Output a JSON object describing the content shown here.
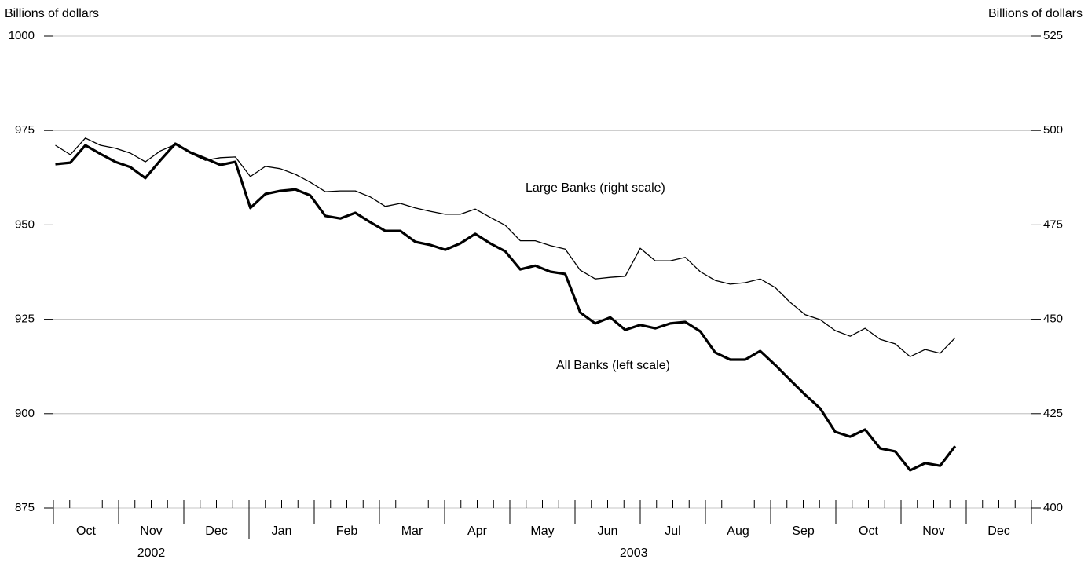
{
  "chart_data": {
    "type": "line",
    "y_label": "Billions of dollars",
    "y2_label": "Billions of dollars",
    "xlim": [
      0,
      15
    ],
    "xticks": [
      {
        "value": 0.5,
        "label": "Oct"
      },
      {
        "value": 1.5,
        "label": "Nov"
      },
      {
        "value": 2.5,
        "label": "Dec"
      },
      {
        "value": 3.5,
        "label": "Jan"
      },
      {
        "value": 4.5,
        "label": "Feb"
      },
      {
        "value": 5.5,
        "label": "Mar"
      },
      {
        "value": 6.5,
        "label": "Apr"
      },
      {
        "value": 7.5,
        "label": "May"
      },
      {
        "value": 8.5,
        "label": "Jun"
      },
      {
        "value": 9.5,
        "label": "Jul"
      },
      {
        "value": 10.5,
        "label": "Aug"
      },
      {
        "value": 11.5,
        "label": "Sep"
      },
      {
        "value": 12.5,
        "label": "Oct"
      },
      {
        "value": 13.5,
        "label": "Nov"
      },
      {
        "value": 14.5,
        "label": "Dec"
      }
    ],
    "year_labels": [
      {
        "value": 1.5,
        "label": "2002"
      },
      {
        "value": 8.9,
        "label": "2003"
      }
    ],
    "year_ticks": [
      3
    ],
    "ylim": [
      875,
      1000
    ],
    "yticks": [
      875,
      900,
      925,
      950,
      975,
      1000
    ],
    "y2lim": [
      400,
      525
    ],
    "y2ticks": [
      400,
      425,
      450,
      475,
      500,
      525
    ],
    "grid": true,
    "x": [
      0.03,
      0.26,
      0.49,
      0.72,
      0.95,
      1.18,
      1.41,
      1.64,
      1.87,
      2.1,
      2.33,
      2.56,
      2.79,
      3.02,
      3.25,
      3.48,
      3.71,
      3.94,
      4.17,
      4.4,
      4.63,
      4.86,
      5.09,
      5.32,
      5.55,
      5.78,
      6.01,
      6.24,
      6.47,
      6.7,
      6.93,
      7.16,
      7.39,
      7.62,
      7.85,
      8.08,
      8.31,
      8.54,
      8.77,
      9.0,
      9.23,
      9.46,
      9.69,
      9.92,
      10.15,
      10.38,
      10.61,
      10.84,
      11.07,
      11.3,
      11.53,
      11.76,
      11.99,
      12.22,
      12.45,
      12.68,
      12.91,
      13.14,
      13.37,
      13.6,
      13.83
    ],
    "series": [
      {
        "name": "All Banks (left scale)",
        "color": "#000000",
        "axis": "y",
        "width": 3.2,
        "values": [
          966.1,
          966.5,
          971.1,
          968.8,
          966.7,
          965.3,
          962.4,
          967.1,
          971.5,
          969.2,
          967.6,
          965.9,
          966.7,
          954.5,
          958.2,
          959.0,
          959.4,
          957.8,
          952.4,
          951.7,
          953.2,
          950.7,
          948.4,
          948.4,
          945.5,
          944.7,
          943.4,
          945.1,
          947.6,
          945.1,
          943.0,
          938.2,
          939.2,
          937.6,
          937.0,
          926.8,
          923.9,
          925.5,
          922.2,
          923.5,
          922.6,
          923.9,
          924.3,
          921.8,
          916.2,
          914.3,
          914.3,
          916.6,
          912.9,
          908.9,
          905.0,
          901.4,
          895.2,
          893.9,
          895.8,
          890.8,
          890.0,
          885.0,
          886.9,
          886.2,
          891.4
        ]
      },
      {
        "name": "Large Banks (right scale)",
        "color": "#000000",
        "axis": "y2",
        "width": 1.3,
        "values": [
          496.1,
          493.6,
          498.0,
          496.1,
          495.3,
          494.0,
          491.7,
          494.6,
          496.3,
          494.0,
          492.1,
          492.8,
          493.0,
          487.8,
          490.5,
          489.9,
          488.4,
          486.3,
          483.8,
          484.0,
          484.0,
          482.4,
          479.9,
          480.7,
          479.5,
          478.6,
          477.8,
          477.8,
          479.2,
          477.0,
          474.9,
          470.8,
          470.8,
          469.5,
          468.6,
          463.0,
          460.7,
          461.1,
          461.4,
          468.8,
          465.5,
          465.5,
          466.4,
          462.6,
          460.3,
          459.3,
          459.7,
          460.7,
          458.4,
          454.5,
          451.2,
          449.9,
          447.0,
          445.5,
          447.6,
          444.7,
          443.5,
          440.1,
          442.0,
          441.0,
          445.1
        ]
      }
    ]
  }
}
